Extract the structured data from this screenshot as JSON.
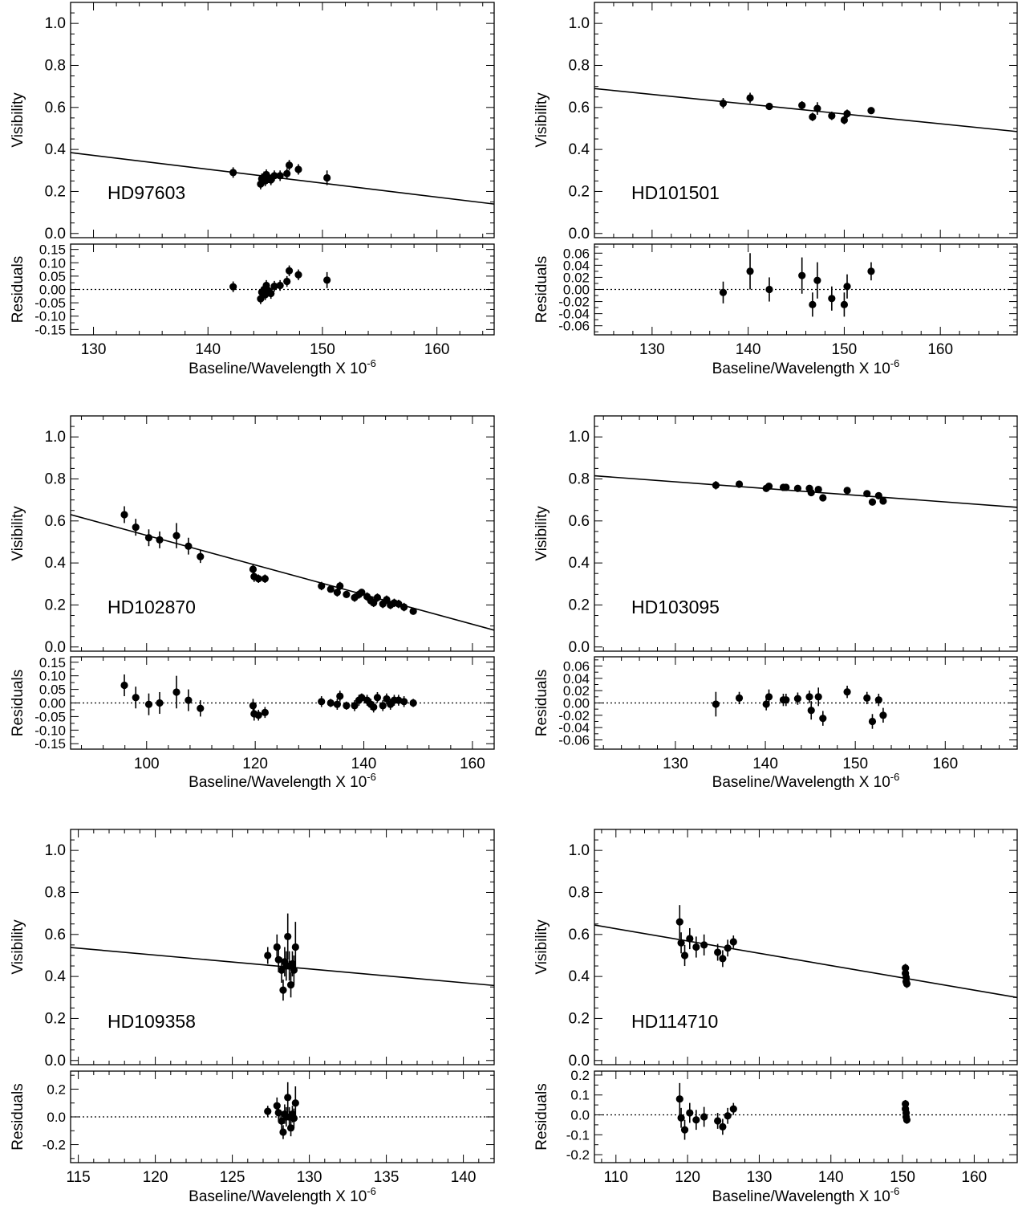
{
  "chart_data": [
    {
      "type": "scatter",
      "star": "HD97603",
      "ylabel_top": "Visibility",
      "ylabel_bottom": "Residuals",
      "xlabel": "Baseline/Wavelength X 10",
      "xlabel_exponent": "-6",
      "xlim": [
        128,
        165
      ],
      "xticks": [
        130,
        140,
        150,
        160
      ],
      "ylim_top": [
        -0.02,
        1.1
      ],
      "yticks_top": [
        0.0,
        0.2,
        0.4,
        0.6,
        0.8,
        1.0
      ],
      "ylim_bottom": [
        -0.17,
        0.17
      ],
      "yticks_bottom": [
        -0.15,
        -0.1,
        -0.05,
        0.0,
        0.05,
        0.1,
        0.15
      ],
      "fit_line": {
        "x": [
          128,
          165
        ],
        "y": [
          0.385,
          0.14
        ]
      },
      "points": [
        {
          "x": 142.2,
          "y": 0.29,
          "err": 0.025,
          "res": 0.01,
          "res_err": 0.02
        },
        {
          "x": 144.6,
          "y": 0.235,
          "err": 0.025,
          "res": -0.035,
          "res_err": 0.02
        },
        {
          "x": 144.7,
          "y": 0.26,
          "err": 0.025,
          "res": -0.01,
          "res_err": 0.02
        },
        {
          "x": 144.9,
          "y": 0.27,
          "err": 0.025,
          "res": 0.0,
          "res_err": 0.02
        },
        {
          "x": 145.0,
          "y": 0.25,
          "err": 0.025,
          "res": -0.02,
          "res_err": 0.02
        },
        {
          "x": 145.1,
          "y": 0.28,
          "err": 0.025,
          "res": 0.015,
          "res_err": 0.02
        },
        {
          "x": 145.3,
          "y": 0.265,
          "err": 0.025,
          "res": -0.005,
          "res_err": 0.02
        },
        {
          "x": 145.5,
          "y": 0.255,
          "err": 0.025,
          "res": -0.015,
          "res_err": 0.02
        },
        {
          "x": 145.8,
          "y": 0.275,
          "err": 0.025,
          "res": 0.012,
          "res_err": 0.02
        },
        {
          "x": 146.3,
          "y": 0.275,
          "err": 0.025,
          "res": 0.015,
          "res_err": 0.02
        },
        {
          "x": 146.9,
          "y": 0.285,
          "err": 0.025,
          "res": 0.03,
          "res_err": 0.02
        },
        {
          "x": 147.1,
          "y": 0.325,
          "err": 0.025,
          "res": 0.07,
          "res_err": 0.02
        },
        {
          "x": 147.9,
          "y": 0.305,
          "err": 0.025,
          "res": 0.055,
          "res_err": 0.02
        },
        {
          "x": 150.4,
          "y": 0.265,
          "err": 0.035,
          "res": 0.035,
          "res_err": 0.03
        }
      ]
    },
    {
      "type": "scatter",
      "star": "HD101501",
      "ylabel_top": "Visibility",
      "ylabel_bottom": "Residuals",
      "xlabel": "Baseline/Wavelength X 10",
      "xlabel_exponent": "-6",
      "xlim": [
        124,
        168
      ],
      "xticks": [
        130,
        140,
        150,
        160
      ],
      "ylim_top": [
        -0.02,
        1.1
      ],
      "yticks_top": [
        0.0,
        0.2,
        0.4,
        0.6,
        0.8,
        1.0
      ],
      "ylim_bottom": [
        -0.075,
        0.075
      ],
      "yticks_bottom": [
        -0.06,
        -0.04,
        -0.02,
        0.0,
        0.02,
        0.04,
        0.06
      ],
      "fit_line": {
        "x": [
          124,
          168
        ],
        "y": [
          0.69,
          0.485
        ]
      },
      "points": [
        {
          "x": 137.4,
          "y": 0.62,
          "err": 0.025,
          "res": -0.005,
          "res_err": 0.018
        },
        {
          "x": 140.2,
          "y": 0.645,
          "err": 0.025,
          "res": 0.03,
          "res_err": 0.03
        },
        {
          "x": 142.2,
          "y": 0.605,
          "err": 0.015,
          "res": 0.0,
          "res_err": 0.02
        },
        {
          "x": 145.6,
          "y": 0.61,
          "err": 0.02,
          "res": 0.023,
          "res_err": 0.03
        },
        {
          "x": 146.7,
          "y": 0.555,
          "err": 0.02,
          "res": -0.025,
          "res_err": 0.02
        },
        {
          "x": 147.2,
          "y": 0.595,
          "err": 0.03,
          "res": 0.015,
          "res_err": 0.03
        },
        {
          "x": 148.7,
          "y": 0.56,
          "err": 0.02,
          "res": -0.015,
          "res_err": 0.02
        },
        {
          "x": 150.0,
          "y": 0.54,
          "err": 0.02,
          "res": -0.025,
          "res_err": 0.02
        },
        {
          "x": 150.3,
          "y": 0.57,
          "err": 0.02,
          "res": 0.005,
          "res_err": 0.02
        },
        {
          "x": 152.8,
          "y": 0.585,
          "err": 0.015,
          "res": 0.03,
          "res_err": 0.015
        }
      ]
    },
    {
      "type": "scatter",
      "star": "HD102870",
      "ylabel_top": "Visibility",
      "ylabel_bottom": "Residuals",
      "xlabel": "Baseline/Wavelength X 10",
      "xlabel_exponent": "-6",
      "xlim": [
        86,
        164
      ],
      "xticks": [
        100,
        120,
        140,
        160
      ],
      "ylim_top": [
        -0.02,
        1.1
      ],
      "yticks_top": [
        0.0,
        0.2,
        0.4,
        0.6,
        0.8,
        1.0
      ],
      "ylim_bottom": [
        -0.17,
        0.17
      ],
      "yticks_bottom": [
        -0.15,
        -0.1,
        -0.05,
        0.0,
        0.05,
        0.1,
        0.15
      ],
      "fit_line": {
        "x": [
          86,
          164
        ],
        "y": [
          0.63,
          0.08
        ]
      },
      "points": [
        {
          "x": 95.9,
          "y": 0.63,
          "err": 0.04,
          "res": 0.065,
          "res_err": 0.04
        },
        {
          "x": 98.0,
          "y": 0.57,
          "err": 0.04,
          "res": 0.02,
          "res_err": 0.04
        },
        {
          "x": 100.4,
          "y": 0.52,
          "err": 0.04,
          "res": -0.005,
          "res_err": 0.04
        },
        {
          "x": 102.4,
          "y": 0.51,
          "err": 0.04,
          "res": 0.0,
          "res_err": 0.04
        },
        {
          "x": 105.5,
          "y": 0.53,
          "err": 0.06,
          "res": 0.04,
          "res_err": 0.06
        },
        {
          "x": 107.7,
          "y": 0.48,
          "err": 0.04,
          "res": 0.01,
          "res_err": 0.04
        },
        {
          "x": 109.9,
          "y": 0.43,
          "err": 0.03,
          "res": -0.02,
          "res_err": 0.03
        },
        {
          "x": 119.6,
          "y": 0.37,
          "err": 0.025,
          "res": -0.01,
          "res_err": 0.025
        },
        {
          "x": 119.8,
          "y": 0.335,
          "err": 0.025,
          "res": -0.04,
          "res_err": 0.025
        },
        {
          "x": 120.6,
          "y": 0.325,
          "err": 0.02,
          "res": -0.045,
          "res_err": 0.02
        },
        {
          "x": 121.8,
          "y": 0.325,
          "err": 0.02,
          "res": -0.035,
          "res_err": 0.02
        },
        {
          "x": 132.2,
          "y": 0.29,
          "err": 0.02,
          "res": 0.005,
          "res_err": 0.02
        },
        {
          "x": 133.9,
          "y": 0.275,
          "err": 0.015,
          "res": 0.0,
          "res_err": 0.015
        },
        {
          "x": 135.1,
          "y": 0.26,
          "err": 0.02,
          "res": -0.005,
          "res_err": 0.02
        },
        {
          "x": 135.6,
          "y": 0.29,
          "err": 0.02,
          "res": 0.025,
          "res_err": 0.02
        },
        {
          "x": 136.8,
          "y": 0.25,
          "err": 0.015,
          "res": -0.01,
          "res_err": 0.015
        },
        {
          "x": 138.3,
          "y": 0.235,
          "err": 0.02,
          "res": -0.01,
          "res_err": 0.02
        },
        {
          "x": 139.1,
          "y": 0.25,
          "err": 0.02,
          "res": 0.01,
          "res_err": 0.02
        },
        {
          "x": 139.6,
          "y": 0.26,
          "err": 0.015,
          "res": 0.02,
          "res_err": 0.015
        },
        {
          "x": 140.6,
          "y": 0.24,
          "err": 0.02,
          "res": 0.01,
          "res_err": 0.02
        },
        {
          "x": 141.3,
          "y": 0.22,
          "err": 0.02,
          "res": -0.005,
          "res_err": 0.02
        },
        {
          "x": 141.8,
          "y": 0.21,
          "err": 0.02,
          "res": -0.015,
          "res_err": 0.02
        },
        {
          "x": 142.5,
          "y": 0.235,
          "err": 0.02,
          "res": 0.02,
          "res_err": 0.02
        },
        {
          "x": 143.5,
          "y": 0.205,
          "err": 0.02,
          "res": -0.01,
          "res_err": 0.02
        },
        {
          "x": 144.2,
          "y": 0.225,
          "err": 0.02,
          "res": 0.015,
          "res_err": 0.02
        },
        {
          "x": 144.9,
          "y": 0.2,
          "err": 0.02,
          "res": -0.005,
          "res_err": 0.02
        },
        {
          "x": 145.6,
          "y": 0.21,
          "err": 0.02,
          "res": 0.01,
          "res_err": 0.02
        },
        {
          "x": 146.4,
          "y": 0.205,
          "err": 0.02,
          "res": 0.01,
          "res_err": 0.02
        },
        {
          "x": 147.4,
          "y": 0.19,
          "err": 0.02,
          "res": 0.005,
          "res_err": 0.02
        },
        {
          "x": 149.1,
          "y": 0.17,
          "err": 0.015,
          "res": 0.0,
          "res_err": 0.015
        }
      ]
    },
    {
      "type": "scatter",
      "star": "HD103095",
      "ylabel_top": "Visibility",
      "ylabel_bottom": "Residuals",
      "xlabel": "Baseline/Wavelength X 10",
      "xlabel_exponent": "-6",
      "xlim": [
        121,
        168
      ],
      "xticks": [
        130,
        140,
        150,
        160
      ],
      "ylim_top": [
        -0.02,
        1.1
      ],
      "yticks_top": [
        0.0,
        0.2,
        0.4,
        0.6,
        0.8,
        1.0
      ],
      "ylim_bottom": [
        -0.075,
        0.075
      ],
      "yticks_bottom": [
        -0.06,
        -0.04,
        -0.02,
        0.0,
        0.02,
        0.04,
        0.06
      ],
      "fit_line": {
        "x": [
          121,
          168
        ],
        "y": [
          0.815,
          0.665
        ]
      },
      "points": [
        {
          "x": 134.5,
          "y": 0.77,
          "err": 0.02,
          "res": -0.002,
          "res_err": 0.02
        },
        {
          "x": 137.1,
          "y": 0.775,
          "err": 0.01,
          "res": 0.008,
          "res_err": 0.01
        },
        {
          "x": 140.1,
          "y": 0.755,
          "err": 0.01,
          "res": -0.002,
          "res_err": 0.01
        },
        {
          "x": 140.4,
          "y": 0.765,
          "err": 0.012,
          "res": 0.01,
          "res_err": 0.012
        },
        {
          "x": 142.0,
          "y": 0.76,
          "err": 0.01,
          "res": 0.005,
          "res_err": 0.01
        },
        {
          "x": 142.3,
          "y": 0.76,
          "err": 0.01,
          "res": 0.005,
          "res_err": 0.01
        },
        {
          "x": 143.6,
          "y": 0.755,
          "err": 0.01,
          "res": 0.007,
          "res_err": 0.01
        },
        {
          "x": 144.9,
          "y": 0.755,
          "err": 0.01,
          "res": 0.01,
          "res_err": 0.01
        },
        {
          "x": 145.1,
          "y": 0.735,
          "err": 0.015,
          "res": -0.012,
          "res_err": 0.015
        },
        {
          "x": 145.9,
          "y": 0.75,
          "err": 0.01,
          "res": 0.01,
          "res_err": 0.015
        },
        {
          "x": 146.4,
          "y": 0.71,
          "err": 0.015,
          "res": -0.025,
          "res_err": 0.012
        },
        {
          "x": 149.1,
          "y": 0.745,
          "err": 0.01,
          "res": 0.018,
          "res_err": 0.01
        },
        {
          "x": 151.3,
          "y": 0.73,
          "err": 0.01,
          "res": 0.008,
          "res_err": 0.01
        },
        {
          "x": 151.9,
          "y": 0.69,
          "err": 0.012,
          "res": -0.03,
          "res_err": 0.012
        },
        {
          "x": 152.6,
          "y": 0.72,
          "err": 0.01,
          "res": 0.005,
          "res_err": 0.01
        },
        {
          "x": 153.1,
          "y": 0.695,
          "err": 0.012,
          "res": -0.02,
          "res_err": 0.012
        }
      ]
    },
    {
      "type": "scatter",
      "star": "HD109358",
      "ylabel_top": "Visibility",
      "ylabel_bottom": "Residuals",
      "xlabel": "Baseline/Wavelength X 10",
      "xlabel_exponent": "-6",
      "xlim": [
        114.5,
        142
      ],
      "xticks": [
        115,
        120,
        125,
        130,
        135,
        140
      ],
      "ylim_top": [
        -0.02,
        1.1
      ],
      "yticks_top": [
        0.0,
        0.2,
        0.4,
        0.6,
        0.8,
        1.0
      ],
      "ylim_bottom": [
        -0.33,
        0.33
      ],
      "yticks_bottom": [
        -0.2,
        0.0,
        0.2
      ],
      "fit_line": {
        "x": [
          114.5,
          142
        ],
        "y": [
          0.538,
          0.357
        ]
      },
      "points": [
        {
          "x": 127.3,
          "y": 0.5,
          "err": 0.04,
          "res": 0.04,
          "res_err": 0.04
        },
        {
          "x": 127.9,
          "y": 0.54,
          "err": 0.06,
          "res": 0.08,
          "res_err": 0.06
        },
        {
          "x": 128.0,
          "y": 0.48,
          "err": 0.06,
          "res": 0.03,
          "res_err": 0.06
        },
        {
          "x": 128.2,
          "y": 0.43,
          "err": 0.06,
          "res": -0.03,
          "res_err": 0.06
        },
        {
          "x": 128.3,
          "y": 0.335,
          "err": 0.05,
          "res": -0.11,
          "res_err": 0.05
        },
        {
          "x": 128.4,
          "y": 0.47,
          "err": 0.07,
          "res": 0.02,
          "res_err": 0.07
        },
        {
          "x": 128.5,
          "y": 0.45,
          "err": 0.07,
          "res": 0.0,
          "res_err": 0.07
        },
        {
          "x": 128.6,
          "y": 0.59,
          "err": 0.11,
          "res": 0.14,
          "res_err": 0.11
        },
        {
          "x": 128.7,
          "y": 0.45,
          "err": 0.07,
          "res": 0.0,
          "res_err": 0.07
        },
        {
          "x": 128.8,
          "y": 0.36,
          "err": 0.06,
          "res": -0.08,
          "res_err": 0.06
        },
        {
          "x": 128.9,
          "y": 0.46,
          "err": 0.06,
          "res": 0.02,
          "res_err": 0.06
        },
        {
          "x": 129.0,
          "y": 0.43,
          "err": 0.07,
          "res": -0.01,
          "res_err": 0.07
        },
        {
          "x": 129.1,
          "y": 0.54,
          "err": 0.12,
          "res": 0.1,
          "res_err": 0.12
        }
      ]
    },
    {
      "type": "scatter",
      "star": "HD114710",
      "ylabel_top": "Visibility",
      "ylabel_bottom": "Residuals",
      "xlabel": "Baseline/Wavelength X 10",
      "xlabel_exponent": "-6",
      "xlim": [
        107,
        166
      ],
      "xticks": [
        110,
        120,
        130,
        140,
        150,
        160
      ],
      "ylim_top": [
        -0.02,
        1.1
      ],
      "yticks_top": [
        0.0,
        0.2,
        0.4,
        0.6,
        0.8,
        1.0
      ],
      "ylim_bottom": [
        -0.24,
        0.22
      ],
      "yticks_bottom": [
        -0.2,
        -0.1,
        0.0,
        0.1,
        0.2
      ],
      "fit_line": {
        "x": [
          107,
          166
        ],
        "y": [
          0.645,
          0.3
        ]
      },
      "points": [
        {
          "x": 118.9,
          "y": 0.66,
          "err": 0.08,
          "res": 0.08,
          "res_err": 0.08
        },
        {
          "x": 119.1,
          "y": 0.56,
          "err": 0.05,
          "res": -0.015,
          "res_err": 0.05
        },
        {
          "x": 119.6,
          "y": 0.5,
          "err": 0.05,
          "res": -0.075,
          "res_err": 0.05
        },
        {
          "x": 120.3,
          "y": 0.58,
          "err": 0.05,
          "res": 0.01,
          "res_err": 0.05
        },
        {
          "x": 121.2,
          "y": 0.54,
          "err": 0.05,
          "res": -0.025,
          "res_err": 0.05
        },
        {
          "x": 122.3,
          "y": 0.55,
          "err": 0.05,
          "res": -0.01,
          "res_err": 0.05
        },
        {
          "x": 124.2,
          "y": 0.515,
          "err": 0.04,
          "res": -0.03,
          "res_err": 0.04
        },
        {
          "x": 124.9,
          "y": 0.485,
          "err": 0.04,
          "res": -0.06,
          "res_err": 0.04
        },
        {
          "x": 125.6,
          "y": 0.535,
          "err": 0.04,
          "res": -0.005,
          "res_err": 0.04
        },
        {
          "x": 126.4,
          "y": 0.565,
          "err": 0.03,
          "res": 0.03,
          "res_err": 0.03
        },
        {
          "x": 150.4,
          "y": 0.44,
          "err": 0.02,
          "res": 0.055,
          "res_err": 0.02
        },
        {
          "x": 150.4,
          "y": 0.415,
          "err": 0.02,
          "res": 0.03,
          "res_err": 0.02
        },
        {
          "x": 150.5,
          "y": 0.395,
          "err": 0.02,
          "res": 0.01,
          "res_err": 0.02
        },
        {
          "x": 150.5,
          "y": 0.375,
          "err": 0.02,
          "res": -0.01,
          "res_err": 0.02
        },
        {
          "x": 150.6,
          "y": 0.365,
          "err": 0.02,
          "res": -0.025,
          "res_err": 0.02
        }
      ]
    }
  ]
}
